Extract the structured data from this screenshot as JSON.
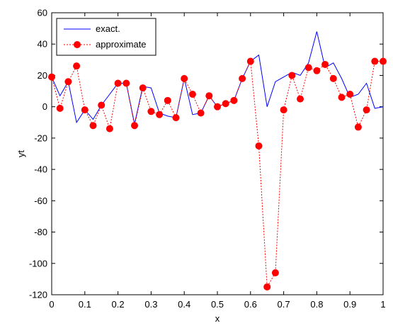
{
  "chart_data": {
    "type": "line",
    "xlabel": "x",
    "ylabel": "yt",
    "xlim": [
      0,
      1
    ],
    "ylim": [
      -120,
      60
    ],
    "xticks": [
      "0",
      "0.1",
      "0.2",
      "0.3",
      "0.4",
      "0.5",
      "0.6",
      "0.7",
      "0.8",
      "0.9",
      "1"
    ],
    "yticks": [
      "60",
      "40",
      "20",
      "0",
      "-20",
      "-40",
      "-60",
      "-80",
      "-100",
      "-120"
    ],
    "grid": false,
    "legend_position": "top-left",
    "series": [
      {
        "name": "exact.",
        "style": "solid",
        "color": "#0000ff",
        "x": [
          0,
          0.025,
          0.05,
          0.075,
          0.1,
          0.125,
          0.15,
          0.175,
          0.2,
          0.225,
          0.25,
          0.275,
          0.3,
          0.325,
          0.35,
          0.375,
          0.4,
          0.425,
          0.45,
          0.475,
          0.5,
          0.525,
          0.55,
          0.575,
          0.6,
          0.625,
          0.65,
          0.675,
          0.7,
          0.725,
          0.75,
          0.775,
          0.8,
          0.825,
          0.85,
          0.875,
          0.9,
          0.925,
          0.95,
          0.975,
          1
        ],
        "y": [
          19,
          7,
          16,
          -10,
          -2,
          -8,
          1,
          8,
          15,
          15,
          -11,
          13,
          12,
          -4,
          -6,
          -7,
          18,
          -5,
          -4,
          7,
          0,
          2,
          4,
          18,
          29,
          33,
          0,
          16,
          19,
          22,
          20,
          28,
          48,
          25,
          28,
          18,
          6,
          8,
          15,
          -1,
          0
        ]
      },
      {
        "name": "approximate",
        "style": "dotted",
        "marker": "circle",
        "color": "#ff0000",
        "x": [
          0,
          0.025,
          0.05,
          0.075,
          0.1,
          0.125,
          0.15,
          0.175,
          0.2,
          0.225,
          0.25,
          0.275,
          0.3,
          0.325,
          0.35,
          0.375,
          0.4,
          0.425,
          0.45,
          0.475,
          0.5,
          0.525,
          0.55,
          0.575,
          0.6,
          0.625,
          0.65,
          0.675,
          0.7,
          0.725,
          0.75,
          0.775,
          0.8,
          0.825,
          0.85,
          0.875,
          0.9,
          0.925,
          0.95,
          0.975,
          1
        ],
        "y": [
          19,
          -1,
          16,
          26,
          -2,
          -12,
          1,
          -14,
          15,
          15,
          -12,
          12,
          -3,
          -5,
          4,
          -7,
          18,
          8,
          -4,
          7,
          0,
          2,
          4,
          18,
          29,
          -25,
          -115,
          -106,
          -2,
          20,
          5,
          25,
          23,
          27,
          18,
          6,
          8,
          -13,
          -2,
          29,
          29
        ]
      }
    ]
  }
}
